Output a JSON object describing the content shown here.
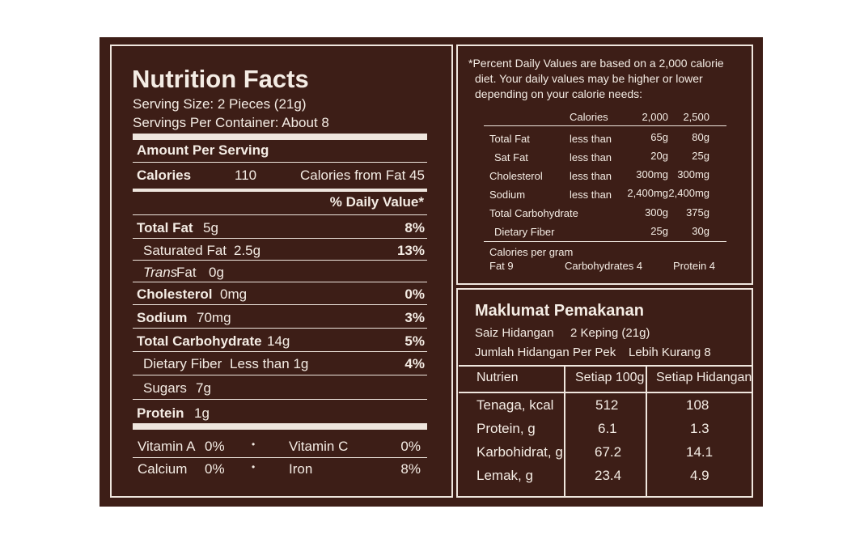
{
  "nf": {
    "title": "Nutrition Facts",
    "serving_size": "Serving Size: 2 Pieces (21g)",
    "servings_per_container": "Servings Per Container: About 8",
    "amount_per_serving": "Amount Per Serving",
    "calories_label": "Calories",
    "calories_value": "110",
    "calories_fat_label": "Calories from Fat",
    "calories_fat_value": "45",
    "dv_header": "% Daily Value*",
    "rows": [
      {
        "label": "Total Fat",
        "amount": "5g",
        "dv": "8%"
      },
      {
        "label": "Saturated Fat",
        "amount": "2.5g",
        "dv": "13%"
      },
      {
        "label": "Trans",
        "label2": "Fat",
        "amount": "0g",
        "dv": ""
      },
      {
        "label": "Cholesterol",
        "amount": "0mg",
        "dv": "0%"
      },
      {
        "label": "Sodium",
        "amount": "70mg",
        "dv": "3%"
      },
      {
        "label": "Total Carbohydrate",
        "amount": "14g",
        "dv": "5%"
      },
      {
        "label": "Dietary Fiber",
        "amount": "Less than 1g",
        "dv": "4%"
      },
      {
        "label": "Sugars",
        "amount": "7g",
        "dv": ""
      },
      {
        "label": "Protein",
        "amount": "1g",
        "dv": ""
      }
    ],
    "vitamins": [
      {
        "name": "Vitamin A",
        "value": "0%"
      },
      {
        "name": "Vitamin C",
        "value": "0%"
      },
      {
        "name": "Calcium",
        "value": "0%"
      },
      {
        "name": "Iron",
        "value": "8%"
      }
    ],
    "dot": "•"
  },
  "footnote": {
    "line1": "*Percent Daily Values are based on a 2,000 calorie",
    "line2": "diet. Your daily values may be higher or lower",
    "line3": "depending on your calorie needs:",
    "header": {
      "calories": "Calories",
      "c2000": "2,000",
      "c2500": "2,500"
    },
    "rows": [
      {
        "nutrient": "Total Fat",
        "cond": "less than",
        "v1": "65g",
        "v2": "80g"
      },
      {
        "nutrient": "Sat Fat",
        "cond": "less than",
        "v1": "20g",
        "v2": "25g"
      },
      {
        "nutrient": "Cholesterol",
        "cond": "less than",
        "v1": "300mg",
        "v2": "300mg"
      },
      {
        "nutrient": "Sodium",
        "cond": "less than",
        "v1": "2,400mg",
        "v2": "2,400mg"
      },
      {
        "nutrient": "Total Carbohydrate",
        "cond": "",
        "v1": "300g",
        "v2": "375g"
      },
      {
        "nutrient": "Dietary Fiber",
        "cond": "",
        "v1": "25g",
        "v2": "30g"
      }
    ],
    "cal_per_gram": "Calories per gram",
    "fat": "Fat 9",
    "carbs": "Carbohydrates 4",
    "protein": "Protein 4"
  },
  "mk": {
    "title": "Maklumat Pemakanan",
    "saiz_label": "Saiz Hidangan",
    "saiz_value": "2 Keping (21g)",
    "jumlah_label": "Jumlah Hidangan Per Pek",
    "jumlah_value": "Lebih Kurang 8",
    "columns": [
      "Nutrien",
      "Setiap 100g",
      "Setiap Hidangan"
    ],
    "rows": [
      {
        "nutrien": "Tenaga, kcal",
        "per100": "512",
        "perserve": "108"
      },
      {
        "nutrien": "Protein, g",
        "per100": "6.1",
        "perserve": "1.3"
      },
      {
        "nutrien": "Karbohidrat, g",
        "per100": "67.2",
        "perserve": "14.1"
      },
      {
        "nutrien": "Lemak, g",
        "per100": "23.4",
        "perserve": "4.9"
      }
    ]
  }
}
